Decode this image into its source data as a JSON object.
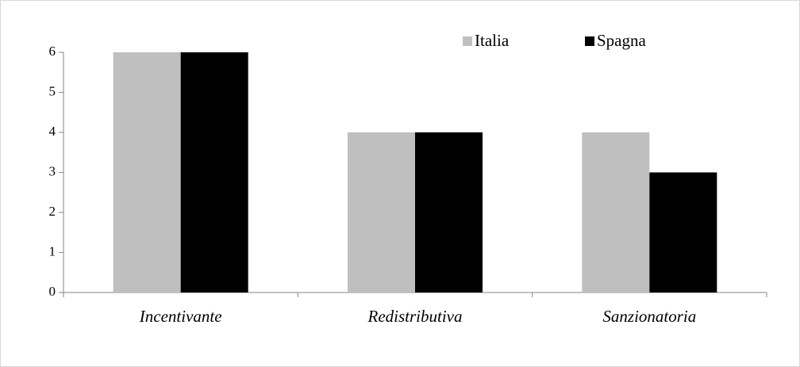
{
  "chart_data": {
    "type": "bar",
    "categories": [
      "Incentivante",
      "Redistributiva",
      "Sanzionatoria"
    ],
    "series": [
      {
        "name": "Italia",
        "color": "#bfbfbf",
        "values": [
          6,
          4,
          4
        ]
      },
      {
        "name": "Spagna",
        "color": "#000000",
        "values": [
          6,
          4,
          3
        ]
      }
    ],
    "ylim": [
      0,
      6
    ],
    "yticks": [
      0,
      1,
      2,
      3,
      4,
      5,
      6
    ],
    "grid": false,
    "legend": "top-right"
  }
}
